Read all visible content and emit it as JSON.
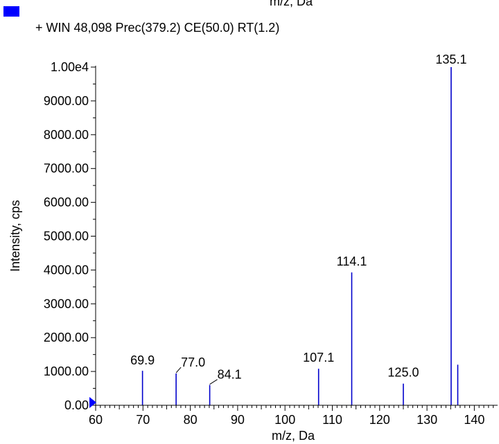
{
  "chart_data": {
    "type": "bar",
    "clipped_top_text": "m/z, Da",
    "legend": {
      "label": "+ WIN 48,098 Prec(379.2) CE(50.0) RT(1.2)",
      "color": "#0000ff",
      "placement": "top-left"
    },
    "title": "",
    "xlabel": "m/z, Da",
    "ylabel": "Intensity, cps",
    "xlim": [
      60,
      144
    ],
    "ylim": [
      0,
      10000
    ],
    "x_ticks": [
      60,
      70,
      80,
      90,
      100,
      110,
      120,
      130,
      140
    ],
    "y_ticks": [
      {
        "value": 0,
        "label": "0.00"
      },
      {
        "value": 1000,
        "label": "1000.00"
      },
      {
        "value": 2000,
        "label": "2000.00"
      },
      {
        "value": 3000,
        "label": "3000.00"
      },
      {
        "value": 4000,
        "label": "4000.00"
      },
      {
        "value": 5000,
        "label": "5000.00"
      },
      {
        "value": 6000,
        "label": "6000.00"
      },
      {
        "value": 7000,
        "label": "7000.00"
      },
      {
        "value": 8000,
        "label": "8000.00"
      },
      {
        "value": 9000,
        "label": "9000.00"
      },
      {
        "value": 10000,
        "label": "1.00e4"
      }
    ],
    "grid": false,
    "bar_color": "#0000cc",
    "peaks": [
      {
        "x": 69.9,
        "y": 1020,
        "label": "69.9"
      },
      {
        "x": 77.0,
        "y": 940,
        "label": "77.0"
      },
      {
        "x": 84.1,
        "y": 600,
        "label": "84.1"
      },
      {
        "x": 107.1,
        "y": 1080,
        "label": "107.1"
      },
      {
        "x": 114.1,
        "y": 3930,
        "label": "114.1"
      },
      {
        "x": 125.0,
        "y": 640,
        "label": "125.0"
      },
      {
        "x": 135.1,
        "y": 10000,
        "label": "135.1"
      },
      {
        "x": 136.5,
        "y": 1200,
        "label": ""
      }
    ]
  }
}
